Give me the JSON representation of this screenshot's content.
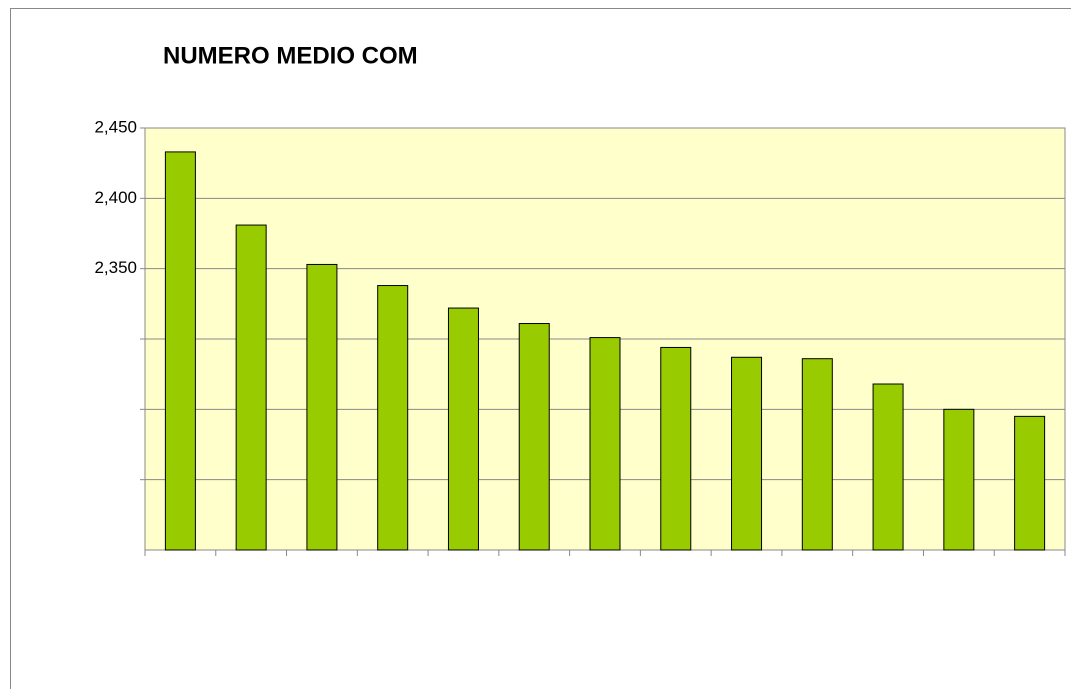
{
  "chart_data": {
    "type": "bar",
    "title": "NUMERO MEDIO COM",
    "categories": [
      null,
      null,
      null,
      null,
      null,
      null,
      null,
      null,
      null,
      null,
      null,
      null,
      null
    ],
    "values": [
      2433,
      2381,
      2353,
      2338,
      2322,
      2311,
      2301,
      2294,
      2287,
      2286,
      2268,
      2250,
      2245
    ],
    "color": "#99cc00",
    "ylim": [
      2150,
      2450
    ],
    "yticks": [
      {
        "value": 2450,
        "label": "2,450"
      },
      {
        "value": 2400,
        "label": "2,400"
      },
      {
        "value": 2350,
        "label": "2,350"
      },
      {
        "value": 2300,
        "label": null
      },
      {
        "value": 2250,
        "label": null
      },
      {
        "value": 2200,
        "label": null
      }
    ],
    "grid": true
  }
}
